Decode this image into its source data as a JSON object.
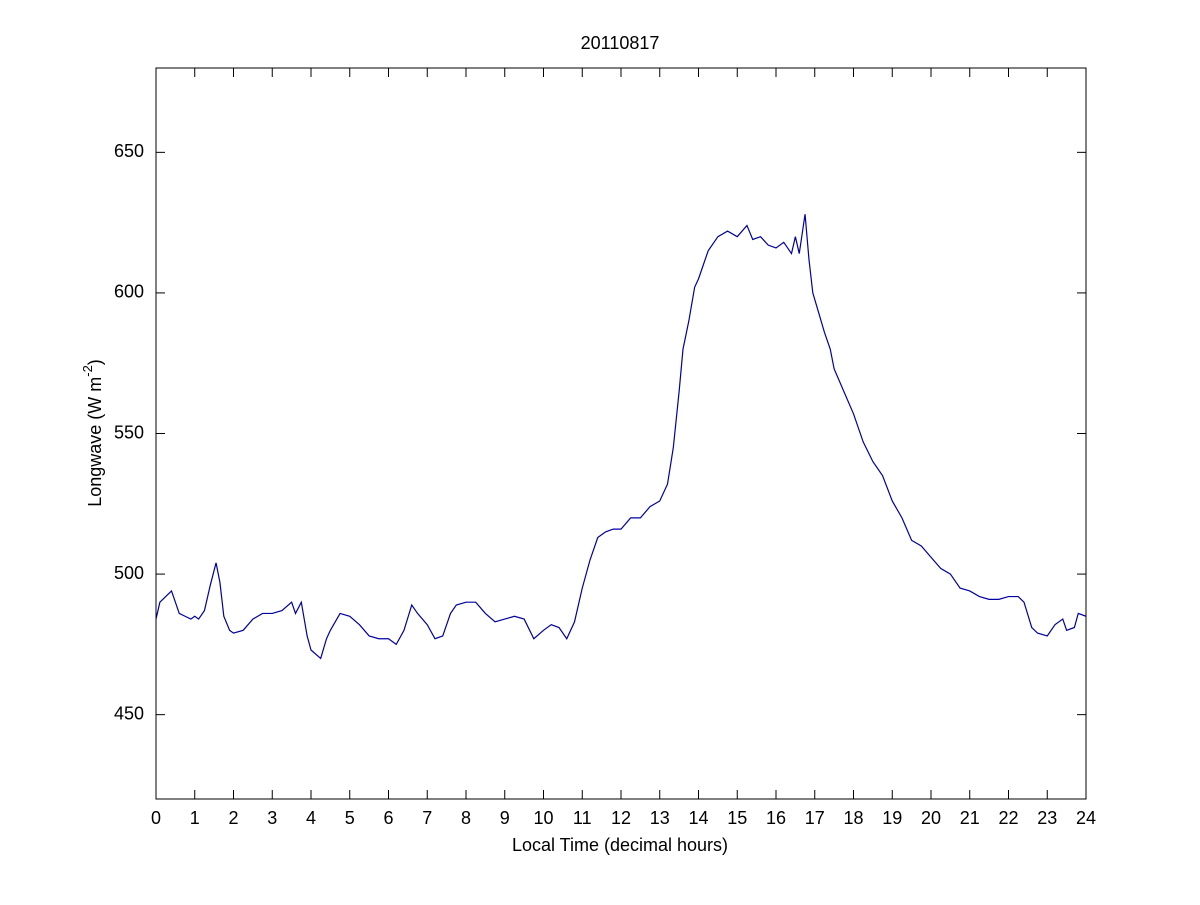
{
  "chart_data": {
    "type": "line",
    "title": "20110817",
    "x_label": "Local Time (decimal hours)",
    "y_label": {
      "text": "Longwave (W m",
      "superscript": "-2",
      "suffix": ")"
    },
    "xlim": [
      0,
      24
    ],
    "ylim": [
      420,
      680
    ],
    "xticks": [
      0,
      1,
      2,
      3,
      4,
      5,
      6,
      7,
      8,
      9,
      10,
      11,
      12,
      13,
      14,
      15,
      16,
      17,
      18,
      19,
      20,
      21,
      22,
      23,
      24
    ],
    "yticks": [
      450,
      500,
      550,
      600,
      650
    ],
    "grid": false,
    "series": [
      {
        "color": "#0000a0",
        "x": [
          0,
          0.1,
          0.25,
          0.4,
          0.5,
          0.6,
          0.75,
          0.9,
          1.0,
          1.1,
          1.25,
          1.4,
          1.55,
          1.65,
          1.75,
          1.9,
          2.0,
          2.25,
          2.5,
          2.75,
          3.0,
          3.25,
          3.5,
          3.6,
          3.75,
          3.9,
          4.0,
          4.25,
          4.4,
          4.5,
          4.75,
          5.0,
          5.25,
          5.5,
          5.75,
          6.0,
          6.2,
          6.4,
          6.6,
          6.75,
          7.0,
          7.2,
          7.4,
          7.6,
          7.75,
          8.0,
          8.25,
          8.5,
          8.75,
          9.0,
          9.25,
          9.5,
          9.75,
          10.0,
          10.2,
          10.4,
          10.6,
          10.8,
          11.0,
          11.2,
          11.4,
          11.6,
          11.8,
          12.0,
          12.25,
          12.5,
          12.75,
          13.0,
          13.2,
          13.35,
          13.5,
          13.6,
          13.75,
          13.9,
          14.0,
          14.25,
          14.5,
          14.75,
          15.0,
          15.25,
          15.4,
          15.6,
          15.8,
          16.0,
          16.2,
          16.4,
          16.5,
          16.6,
          16.75,
          16.85,
          16.95,
          17.1,
          17.25,
          17.4,
          17.5,
          17.75,
          18.0,
          18.25,
          18.5,
          18.75,
          19.0,
          19.25,
          19.5,
          19.75,
          20.0,
          20.25,
          20.5,
          20.75,
          21.0,
          21.25,
          21.5,
          21.75,
          22.0,
          22.25,
          22.4,
          22.6,
          22.75,
          23.0,
          23.2,
          23.4,
          23.5,
          23.7,
          23.8,
          24.0
        ],
        "values": [
          484,
          490,
          492,
          494,
          490,
          486,
          485,
          484,
          485,
          484,
          487,
          496,
          504,
          497,
          485,
          480,
          479,
          480,
          484,
          486,
          486,
          487,
          490,
          486,
          490,
          478,
          473,
          470,
          477,
          480,
          486,
          485,
          482,
          478,
          477,
          477,
          475,
          480,
          489,
          486,
          482,
          477,
          478,
          486,
          489,
          490,
          490,
          486,
          483,
          484,
          485,
          484,
          477,
          480,
          482,
          481,
          477,
          483,
          495,
          505,
          513,
          515,
          516,
          516,
          520,
          520,
          524,
          526,
          532,
          545,
          565,
          580,
          590,
          602,
          605,
          615,
          620,
          622,
          620,
          624,
          619,
          620,
          617,
          616,
          618,
          614,
          620,
          614,
          628,
          612,
          600,
          593,
          586,
          580,
          573,
          565,
          557,
          547,
          540,
          535,
          526,
          520,
          512,
          510,
          506,
          502,
          500,
          495,
          494,
          492,
          491,
          491,
          492,
          492,
          490,
          481,
          479,
          478,
          482,
          484,
          480,
          481,
          486,
          485
        ]
      }
    ]
  }
}
